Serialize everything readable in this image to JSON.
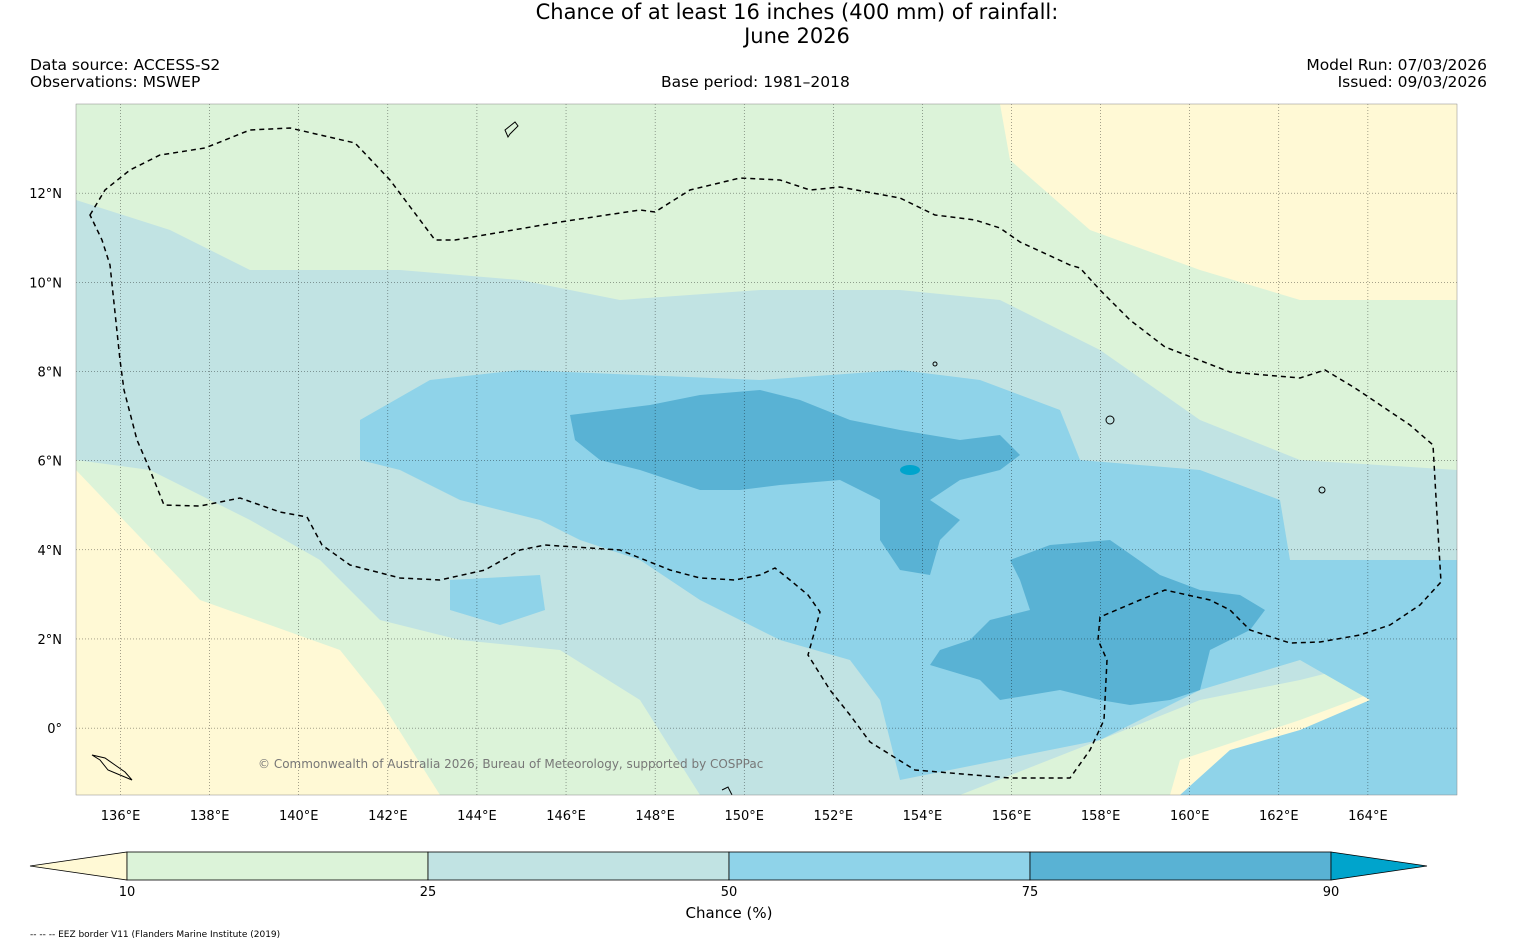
{
  "title": {
    "line1": "Chance of at least 16 inches (400  mm) of rainfall:",
    "line2": "June 2026"
  },
  "header": {
    "data_source": "Data source: ACCESS-S2",
    "observations": "Observations: MSWEP",
    "base_period": "Base period: 1981–2018",
    "model_run": "Model Run: 07/03/2026",
    "issued": "Issued: 09/03/2026"
  },
  "map": {
    "lon_labels": [
      "136°E",
      "138°E",
      "140°E",
      "142°E",
      "144°E",
      "146°E",
      "148°E",
      "150°E",
      "152°E",
      "154°E",
      "156°E",
      "158°E",
      "160°E",
      "162°E",
      "164°E"
    ],
    "lon_values": [
      136,
      138,
      140,
      142,
      144,
      146,
      148,
      150,
      152,
      154,
      156,
      158,
      160,
      162,
      164
    ],
    "lat_labels": [
      "12°N",
      "10°N",
      "8°N",
      "6°N",
      "4°N",
      "2°N",
      "0°"
    ],
    "lat_values": [
      12,
      10,
      8,
      6,
      4,
      2,
      0
    ],
    "lon_range": [
      135,
      166
    ],
    "lat_range": [
      -1.5,
      14
    ],
    "copyright": "© Commonwealth of Australia 2026, Bureau of Meteorology, supported by COSPPac"
  },
  "colorbar": {
    "title": "Chance (%)",
    "ticks": [
      "10",
      "25",
      "50",
      "75",
      "90"
    ],
    "colors": {
      "below_10": "#fff9d5",
      "c10_25": "#dcf3d9",
      "c25_50": "#c1e3e3",
      "c50_75": "#8fd3e9",
      "c75_90": "#59b2d4",
      "above_90": "#00a4cc"
    }
  },
  "footnote": "-- -- -- EEZ border V11 (Flanders Marine Institute (2019)"
}
